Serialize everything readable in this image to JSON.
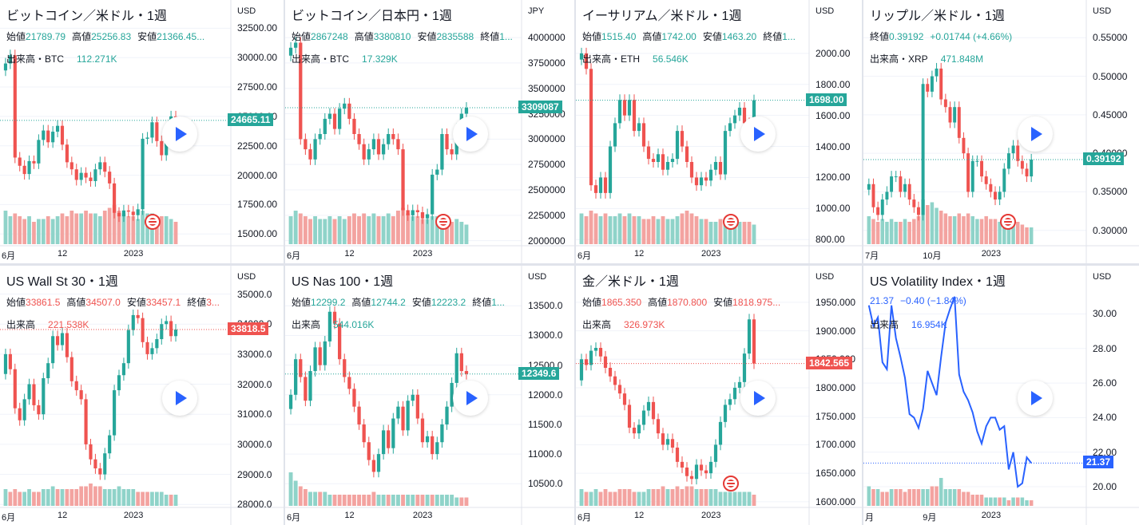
{
  "colors": {
    "up": "#26a69a",
    "down": "#ef5350",
    "upVol": "#8fd3c9",
    "downVol": "#f3a3a0",
    "line": "#2962ff"
  },
  "charts": [
    {
      "type": "candlestick",
      "name": "btc-usd",
      "title": "ビットコイン／米ドル・1週",
      "ohlc": [
        {
          "k": "始値",
          "v": "21789.79"
        },
        {
          "k": "高値",
          "v": "25256.83"
        },
        {
          "k": "安値",
          "v": "21366.45..."
        }
      ],
      "volume": {
        "label": "出来高・BTC",
        "value": "112.271K"
      },
      "currency": "USD",
      "yticks": [
        "32500.00",
        "30000.00",
        "27500.00",
        "25000.00",
        "22500.00",
        "20000.00",
        "17500.00",
        "15000.00"
      ],
      "ylim": [
        14000,
        33000
      ],
      "last": "24665.11",
      "last_value": 24665,
      "last_color": "up",
      "xticks": [
        {
          "label": "6月",
          "i": 0
        },
        {
          "label": "12",
          "i": 12
        },
        {
          "label": "2023",
          "i": 26
        }
      ],
      "prices": [
        29500,
        30200,
        21500,
        20800,
        20100,
        21200,
        21000,
        23000,
        23800,
        22800,
        23700,
        24200,
        22600,
        21100,
        20500,
        19600,
        20200,
        19800,
        19500,
        20500,
        21100,
        20300,
        19300,
        16800,
        16500,
        17000,
        16900,
        16600,
        17100,
        23100,
        23200,
        24500,
        22900,
        21700,
        23100,
        25000,
        24665
      ],
      "volumes": [
        0.6,
        0.5,
        0.55,
        0.5,
        0.45,
        0.5,
        0.4,
        0.45,
        0.45,
        0.5,
        0.45,
        0.5,
        0.55,
        0.5,
        0.6,
        0.55,
        0.55,
        0.6,
        0.55,
        0.55,
        0.5,
        0.6,
        0.65,
        0.7,
        0.6,
        0.55,
        0.5,
        0.5,
        0.45,
        0.6,
        0.55,
        0.55,
        0.5,
        0.5,
        0.5,
        0.45,
        0.4
      ]
    },
    {
      "type": "candlestick",
      "name": "btc-jpy",
      "title": "ビットコイン／日本円・1週",
      "ohlc": [
        {
          "k": "始値",
          "v": "2867248"
        },
        {
          "k": "高値",
          "v": "3380810"
        },
        {
          "k": "安値",
          "v": "2835588"
        },
        {
          "k": "終値",
          "v": "1..."
        }
      ],
      "volume": {
        "label": "出来高・BTC",
        "value": "17.329K"
      },
      "currency": "JPY",
      "yticks": [
        "4000000",
        "3750000",
        "3500000",
        "3250000",
        "3000000",
        "2750000",
        "2500000",
        "2250000",
        "2000000"
      ],
      "ylim": [
        1950000,
        4150000
      ],
      "last": "3309087",
      "last_value": 3309087,
      "last_color": "up",
      "xticks": [
        {
          "label": "6月",
          "i": 0
        },
        {
          "label": "12",
          "i": 12
        },
        {
          "label": "2023",
          "i": 26
        }
      ],
      "prices": [
        3900000,
        3950000,
        3000000,
        2900000,
        2800000,
        3000000,
        3050000,
        3200000,
        3250000,
        3100000,
        3300000,
        3350000,
        3200000,
        3050000,
        2950000,
        2800000,
        2900000,
        3000000,
        2850000,
        2950000,
        3050000,
        3000000,
        2900000,
        2300000,
        2250000,
        2300000,
        2280000,
        2220000,
        2260000,
        2650000,
        2700000,
        3050000,
        2900000,
        2850000,
        3100000,
        3250000,
        3309087
      ],
      "volumes": [
        0.5,
        0.6,
        0.55,
        0.5,
        0.45,
        0.5,
        0.45,
        0.45,
        0.5,
        0.45,
        0.5,
        0.45,
        0.5,
        0.55,
        0.5,
        0.55,
        0.5,
        0.55,
        0.5,
        0.5,
        0.55,
        0.5,
        0.6,
        0.65,
        0.55,
        0.5,
        0.5,
        0.45,
        0.45,
        0.5,
        0.5,
        0.45,
        0.45,
        0.4,
        0.45,
        0.4,
        0.35
      ]
    },
    {
      "type": "candlestick",
      "name": "eth-usd",
      "title": "イーサリアム／米ドル・1週",
      "ohlc": [
        {
          "k": "始値",
          "v": "1515.40"
        },
        {
          "k": "高値",
          "v": "1742.00"
        },
        {
          "k": "安値",
          "v": "1463.20"
        },
        {
          "k": "終値",
          "v": "1..."
        }
      ],
      "volume": {
        "label": "出来高・ETH",
        "value": "56.546K"
      },
      "currency": "USD",
      "yticks": [
        "2000.00",
        "1800.00",
        "1600.00",
        "1400.00",
        "1200.00",
        "1000.00",
        "800.00"
      ],
      "ylim": [
        760,
        2200
      ],
      "last": "1698.00",
      "last_value": 1698,
      "last_color": "up",
      "xticks": [
        {
          "label": "6月",
          "i": 0
        },
        {
          "label": "12",
          "i": 12
        },
        {
          "label": "2023",
          "i": 26
        }
      ],
      "prices": [
        2000,
        1900,
        1150,
        1100,
        1200,
        1100,
        1400,
        1550,
        1700,
        1600,
        1700,
        1500,
        1550,
        1400,
        1320,
        1300,
        1350,
        1250,
        1300,
        1320,
        1500,
        1400,
        1300,
        1200,
        1150,
        1200,
        1180,
        1250,
        1300,
        1220,
        1500,
        1550,
        1600,
        1650,
        1550,
        1480,
        1698
      ],
      "volumes": [
        0.55,
        0.5,
        0.6,
        0.55,
        0.5,
        0.55,
        0.5,
        0.5,
        0.55,
        0.5,
        0.55,
        0.5,
        0.5,
        0.45,
        0.45,
        0.5,
        0.45,
        0.5,
        0.45,
        0.45,
        0.5,
        0.55,
        0.6,
        0.55,
        0.5,
        0.45,
        0.45,
        0.4,
        0.4,
        0.45,
        0.45,
        0.45,
        0.4,
        0.4,
        0.4,
        0.4,
        0.35
      ]
    },
    {
      "type": "candlestick",
      "name": "xrp-usd",
      "title": "リップル／米ドル・1週",
      "ohlc": [
        {
          "k": "終値",
          "v": "0.39192"
        },
        {
          "k": "",
          "v": "+0.01744 (+4.66%)"
        }
      ],
      "volume": {
        "label": "出来高・XRP",
        "value": "471.848M"
      },
      "currency": "USD",
      "yticks": [
        "0.55000",
        "0.50000",
        "0.45000",
        "0.40000",
        "0.35000",
        "0.30000"
      ],
      "ylim": [
        0.28,
        0.57
      ],
      "last": "0.39192",
      "last_value": 0.39192,
      "last_color": "up",
      "xticks": [
        {
          "label": "7月",
          "i": 0
        },
        {
          "label": "10月",
          "i": 13
        },
        {
          "label": "2023",
          "i": 26
        }
      ],
      "prices": [
        0.36,
        0.33,
        0.32,
        0.34,
        0.35,
        0.37,
        0.37,
        0.35,
        0.36,
        0.34,
        0.33,
        0.32,
        0.49,
        0.48,
        0.5,
        0.51,
        0.47,
        0.46,
        0.44,
        0.46,
        0.42,
        0.4,
        0.35,
        0.39,
        0.39,
        0.37,
        0.36,
        0.35,
        0.34,
        0.35,
        0.38,
        0.4,
        0.41,
        0.39,
        0.38,
        0.37,
        0.39192
      ],
      "volumes": [
        0.5,
        0.45,
        0.4,
        0.45,
        0.4,
        0.45,
        0.4,
        0.4,
        0.45,
        0.4,
        0.45,
        0.5,
        0.8,
        0.7,
        0.75,
        0.65,
        0.6,
        0.55,
        0.5,
        0.5,
        0.55,
        0.5,
        0.55,
        0.5,
        0.45,
        0.45,
        0.5,
        0.45,
        0.45,
        0.4,
        0.45,
        0.5,
        0.45,
        0.4,
        0.35,
        0.3,
        0.3
      ]
    },
    {
      "type": "candlestick",
      "name": "us30",
      "title": "US Wall St 30・1週",
      "ohlc": [
        {
          "k": "始値",
          "v": "33861.5"
        },
        {
          "k": "高値",
          "v": "34507.0"
        },
        {
          "k": "安値",
          "v": "33457.1"
        },
        {
          "k": "終値",
          "v": "3..."
        }
      ],
      "volume": {
        "label": "出来高",
        "value": "221.538K"
      },
      "currency": "USD",
      "yticks": [
        "35000.0",
        "34000.0",
        "33000.0",
        "32000.0",
        "31000.0",
        "30000.0",
        "29000.0",
        "28000.0"
      ],
      "ylim": [
        27900,
        35200
      ],
      "last": "33818.5",
      "last_value": 33818.5,
      "last_color": "down",
      "xticks": [
        {
          "label": "6月",
          "i": 0
        },
        {
          "label": "12",
          "i": 12
        },
        {
          "label": "2023",
          "i": 26
        }
      ],
      "prices": [
        33000,
        32500,
        31200,
        30800,
        31500,
        32000,
        31300,
        31000,
        32200,
        32700,
        33600,
        33300,
        33700,
        32900,
        32100,
        31800,
        31500,
        30000,
        29500,
        29200,
        29000,
        29700,
        30300,
        31800,
        32300,
        32700,
        33800,
        34300,
        34200,
        33400,
        33000,
        33200,
        33500,
        34000,
        34100,
        33600,
        33818.5
      ],
      "volumes": [
        0.3,
        0.25,
        0.3,
        0.25,
        0.25,
        0.3,
        0.25,
        0.25,
        0.3,
        0.3,
        0.35,
        0.3,
        0.3,
        0.3,
        0.3,
        0.3,
        0.35,
        0.35,
        0.4,
        0.35,
        0.35,
        0.3,
        0.3,
        0.3,
        0.35,
        0.3,
        0.3,
        0.3,
        0.25,
        0.25,
        0.25,
        0.25,
        0.25,
        0.25,
        0.2,
        0.2,
        0.2
      ]
    },
    {
      "type": "candlestick",
      "name": "nas100",
      "title": "US Nas 100・1週",
      "ohlc": [
        {
          "k": "始値",
          "v": "12299.2"
        },
        {
          "k": "高値",
          "v": "12744.2"
        },
        {
          "k": "安値",
          "v": "12223.2"
        },
        {
          "k": "終値",
          "v": "1..."
        }
      ],
      "volume": {
        "label": "出来高",
        "value": "544.016K"
      },
      "currency": "USD",
      "yticks": [
        "13500.0",
        "13000.0",
        "12500.0",
        "12000.0",
        "11500.0",
        "11000.0",
        "10500.0"
      ],
      "ylim": [
        10100,
        13800
      ],
      "last": "12349.6",
      "last_value": 12349.6,
      "last_color": "up",
      "xticks": [
        {
          "label": "6月",
          "i": 0
        },
        {
          "label": "12",
          "i": 12
        },
        {
          "label": "2023",
          "i": 26
        }
      ],
      "prices": [
        12000,
        12600,
        12300,
        11900,
        12400,
        12800,
        12500,
        12900,
        13400,
        13200,
        12600,
        12300,
        12100,
        11800,
        11500,
        11200,
        10900,
        10700,
        11000,
        11400,
        11100,
        11600,
        11800,
        11400,
        11900,
        12000,
        11600,
        11200,
        11300,
        11000,
        11200,
        11500,
        11800,
        12200,
        12700,
        12400,
        12349.6
      ],
      "volumes": [
        0.6,
        0.45,
        0.35,
        0.3,
        0.25,
        0.25,
        0.25,
        0.25,
        0.2,
        0.2,
        0.2,
        0.2,
        0.2,
        0.2,
        0.2,
        0.2,
        0.2,
        0.25,
        0.2,
        0.2,
        0.2,
        0.2,
        0.2,
        0.2,
        0.2,
        0.2,
        0.2,
        0.2,
        0.2,
        0.2,
        0.2,
        0.2,
        0.2,
        0.2,
        0.15,
        0.15,
        0.15
      ]
    },
    {
      "type": "candlestick",
      "name": "xau-usd",
      "title": "金／米ドル・1週",
      "ohlc": [
        {
          "k": "始値",
          "v": "1865.350"
        },
        {
          "k": "高値",
          "v": "1870.800"
        },
        {
          "k": "安値",
          "v": "1818.975..."
        }
      ],
      "volume": {
        "label": "出来高",
        "value": "326.973K"
      },
      "currency": "USD",
      "yticks": [
        "1950.000",
        "1900.000",
        "1850.000",
        "1800.000",
        "1750.000",
        "1700.000",
        "1650.000",
        "1600.000"
      ],
      "ylim": [
        1590,
        1975
      ],
      "last": "1842.565",
      "last_value": 1842.565,
      "last_color": "down",
      "xticks": [
        {
          "label": "6月",
          "i": 0
        },
        {
          "label": "12",
          "i": 12
        },
        {
          "label": "2023",
          "i": 26
        }
      ],
      "prices": [
        1850,
        1840,
        1865,
        1870,
        1855,
        1835,
        1820,
        1805,
        1790,
        1770,
        1730,
        1720,
        1735,
        1760,
        1775,
        1745,
        1720,
        1700,
        1710,
        1695,
        1670,
        1660,
        1645,
        1640,
        1665,
        1655,
        1650,
        1670,
        1700,
        1740,
        1770,
        1780,
        1800,
        1810,
        1860,
        1920,
        1842.565
      ],
      "volumes": [
        0.3,
        0.25,
        0.25,
        0.3,
        0.25,
        0.3,
        0.25,
        0.25,
        0.3,
        0.3,
        0.3,
        0.25,
        0.25,
        0.25,
        0.3,
        0.3,
        0.3,
        0.35,
        0.3,
        0.3,
        0.35,
        0.3,
        0.35,
        0.35,
        0.3,
        0.3,
        0.3,
        0.3,
        0.3,
        0.25,
        0.25,
        0.25,
        0.25,
        0.25,
        0.25,
        0.25,
        0.2
      ]
    },
    {
      "type": "line",
      "name": "vix",
      "title": "US Volatility Index・1週",
      "ohlc": [
        {
          "k": "",
          "v": "21.37"
        },
        {
          "k": "",
          "v": "−0.40 (−1.84%)"
        }
      ],
      "volume": {
        "label": "出来高",
        "value": "16.954K"
      },
      "currency": "USD",
      "yticks": [
        "30.00",
        "28.00",
        "26.00",
        "24.00",
        "22.00",
        "20.00"
      ],
      "ylim": [
        18.8,
        31.5
      ],
      "last": "21.37",
      "last_value": 21.37,
      "last_color": "line",
      "xticks": [
        {
          "label": "月",
          "i": 0
        },
        {
          "label": "9月",
          "i": 13
        },
        {
          "label": "2023",
          "i": 26
        }
      ],
      "prices": [
        30.5,
        29.3,
        29.8,
        27.2,
        26.8,
        30.5,
        28.6,
        27.5,
        26.3,
        24.2,
        24.0,
        23.4,
        24.5,
        26.7,
        26.0,
        25.3,
        27.5,
        29.5,
        30.3,
        31.0,
        26.5,
        25.5,
        25.0,
        24.3,
        23.2,
        22.5,
        23.5,
        24.0,
        24.0,
        23.3,
        23.5,
        21.0,
        22.0,
        20.0,
        20.2,
        21.7,
        21.37
      ],
      "volumes": [
        0.35,
        0.3,
        0.3,
        0.25,
        0.25,
        0.3,
        0.3,
        0.3,
        0.25,
        0.3,
        0.3,
        0.3,
        0.3,
        0.3,
        0.35,
        0.35,
        0.5,
        0.3,
        0.3,
        0.3,
        0.3,
        0.25,
        0.25,
        0.2,
        0.2,
        0.2,
        0.15,
        0.15,
        0.15,
        0.15,
        0.15,
        0.1,
        0.15,
        0.15,
        0.15,
        0.1,
        0.1
      ]
    }
  ]
}
